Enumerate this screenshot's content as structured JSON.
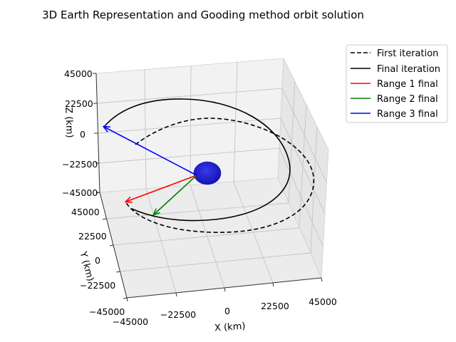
{
  "chart_data": {
    "type": "line",
    "title": "3D Earth Representation and Gooding method orbit solution",
    "xlabel": "X (km)",
    "ylabel": "Y (km)",
    "zlabel": "Z (km)",
    "xlim": [
      -45000,
      45000
    ],
    "ylim": [
      -45000,
      45000
    ],
    "zlim": [
      -45000,
      45000
    ],
    "xticks": [
      "−45000",
      "−22500",
      "0",
      "22500",
      "45000"
    ],
    "yticks": [
      "−45000",
      "−22500",
      "0",
      "22500",
      "45000"
    ],
    "zticks": [
      "−45000",
      "−22500",
      "0",
      "22500",
      "45000"
    ],
    "grid": true,
    "legend_position": "upper-right, outside the axes",
    "series": [
      {
        "name": "First iteration",
        "style": "dashed",
        "color": "#000000"
      },
      {
        "name": "Final iteration",
        "style": "solid",
        "color": "#000000"
      },
      {
        "name": "Range 1 final",
        "style": "arrow",
        "color": "#ff0000"
      },
      {
        "name": "Range 2 final",
        "style": "arrow",
        "color": "#008000"
      },
      {
        "name": "Range 3 final",
        "style": "arrow",
        "color": "#0000ff"
      }
    ],
    "earth_color": "#1a1ad0"
  }
}
